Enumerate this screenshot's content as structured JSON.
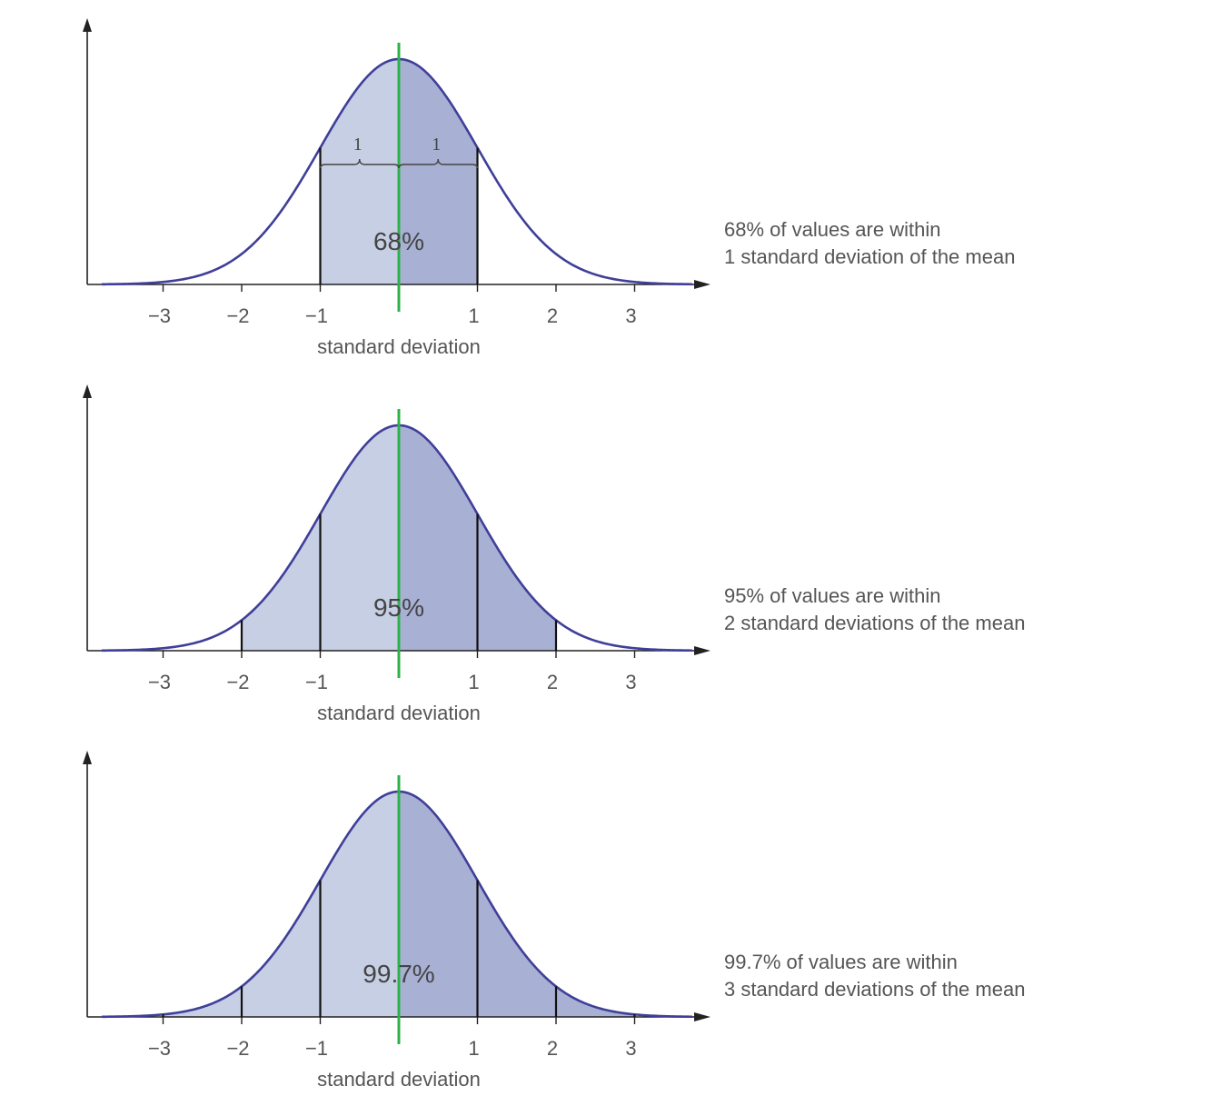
{
  "colors": {
    "light_fill": "#c6cfe3",
    "dark_fill": "#a8b1d4",
    "curve": "#3f3f99",
    "mean_line": "#2db24a",
    "axis": "#222222",
    "bound_line": "#111111"
  },
  "panels": [
    {
      "percent_label": "68%",
      "axis_label": "standard deviation",
      "tick_labels": [
        "−3",
        "−2",
        "−1",
        "1",
        "2",
        "3"
      ],
      "tick_values": [
        -3,
        -2,
        -1,
        1,
        2,
        3
      ],
      "shaded_sigma": 1,
      "brace_labels": [
        "1",
        "1"
      ],
      "caption": [
        "68% of values are within",
        "1 standard deviation of the mean"
      ]
    },
    {
      "percent_label": "95%",
      "axis_label": "standard deviation",
      "tick_labels": [
        "−3",
        "−2",
        "−1",
        "1",
        "2",
        "3"
      ],
      "tick_values": [
        -3,
        -2,
        -1,
        1,
        2,
        3
      ],
      "shaded_sigma": 2,
      "brace_labels": [],
      "caption": [
        "95% of values are within",
        "2 standard deviations of the mean"
      ]
    },
    {
      "percent_label": "99.7%",
      "axis_label": "standard deviation",
      "tick_labels": [
        "−3",
        "−2",
        "−1",
        "1",
        "2",
        "3"
      ],
      "tick_values": [
        -3,
        -2,
        -1,
        1,
        2,
        3
      ],
      "shaded_sigma": 3,
      "brace_labels": [],
      "caption": [
        "99.7% of values are within",
        "3 standard deviations of the mean"
      ]
    }
  ]
}
